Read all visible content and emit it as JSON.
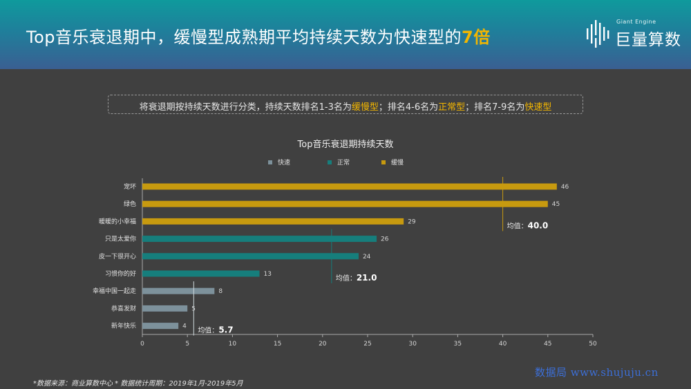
{
  "header": {
    "title_main": "Top音乐衰退期中，缓慢型成熟期平均持续天数为快速型的",
    "title_highlight": "7倍",
    "logo_en": "Giant Engine",
    "logo_cn": "巨量算数"
  },
  "subtitle": {
    "p1": "将衰退期按持续天数进行分类，持续天数排名1-3名为",
    "h1": "缓慢型",
    "p2": "；排名4-6名为",
    "h2": "正常型",
    "p3": "；排名7-9名为",
    "h3": "快速型"
  },
  "colors": {
    "fast": "#7d919b",
    "normal": "#167e7c",
    "slow": "#c79a0f",
    "axis": "#aaaaaa",
    "highlight": "#f3b600"
  },
  "chart_data": {
    "type": "bar",
    "orientation": "horizontal",
    "title": "Top音乐衰退期持续天数",
    "categories": [
      "宠坏",
      "绿色",
      "暖暖的小幸福",
      "只是太爱你",
      "皮一下很开心",
      "习惯你的好",
      "幸福中国一起走",
      "恭喜发财",
      "新年快乐"
    ],
    "values": [
      46,
      45,
      29,
      26,
      24,
      13,
      8,
      5,
      4
    ],
    "groups": [
      "缓慢",
      "缓慢",
      "缓慢",
      "正常",
      "正常",
      "正常",
      "快速",
      "快速",
      "快速"
    ],
    "legend": [
      {
        "name": "快速",
        "color": "#7d919b"
      },
      {
        "name": "正常",
        "color": "#167e7c"
      },
      {
        "name": "缓慢",
        "color": "#c79a0f"
      }
    ],
    "averages": [
      {
        "group": "缓慢",
        "label": "均值：",
        "value": 40.0,
        "display": "40.0"
      },
      {
        "group": "正常",
        "label": "均值：",
        "value": 21.0,
        "display": "21.0"
      },
      {
        "group": "快速",
        "label": "均值：",
        "value": 5.7,
        "display": "5.7"
      }
    ],
    "xlim": [
      0,
      50
    ],
    "xticks": [
      0,
      5,
      10,
      15,
      20,
      25,
      30,
      35,
      40,
      45,
      50
    ],
    "legend_position": "top-center",
    "grid": false
  },
  "footnote": "*数据来源：商业算数中心 * 数据统计周期：2019年1月-2019年5月",
  "watermark": "数据局 www.shujuju.cn"
}
